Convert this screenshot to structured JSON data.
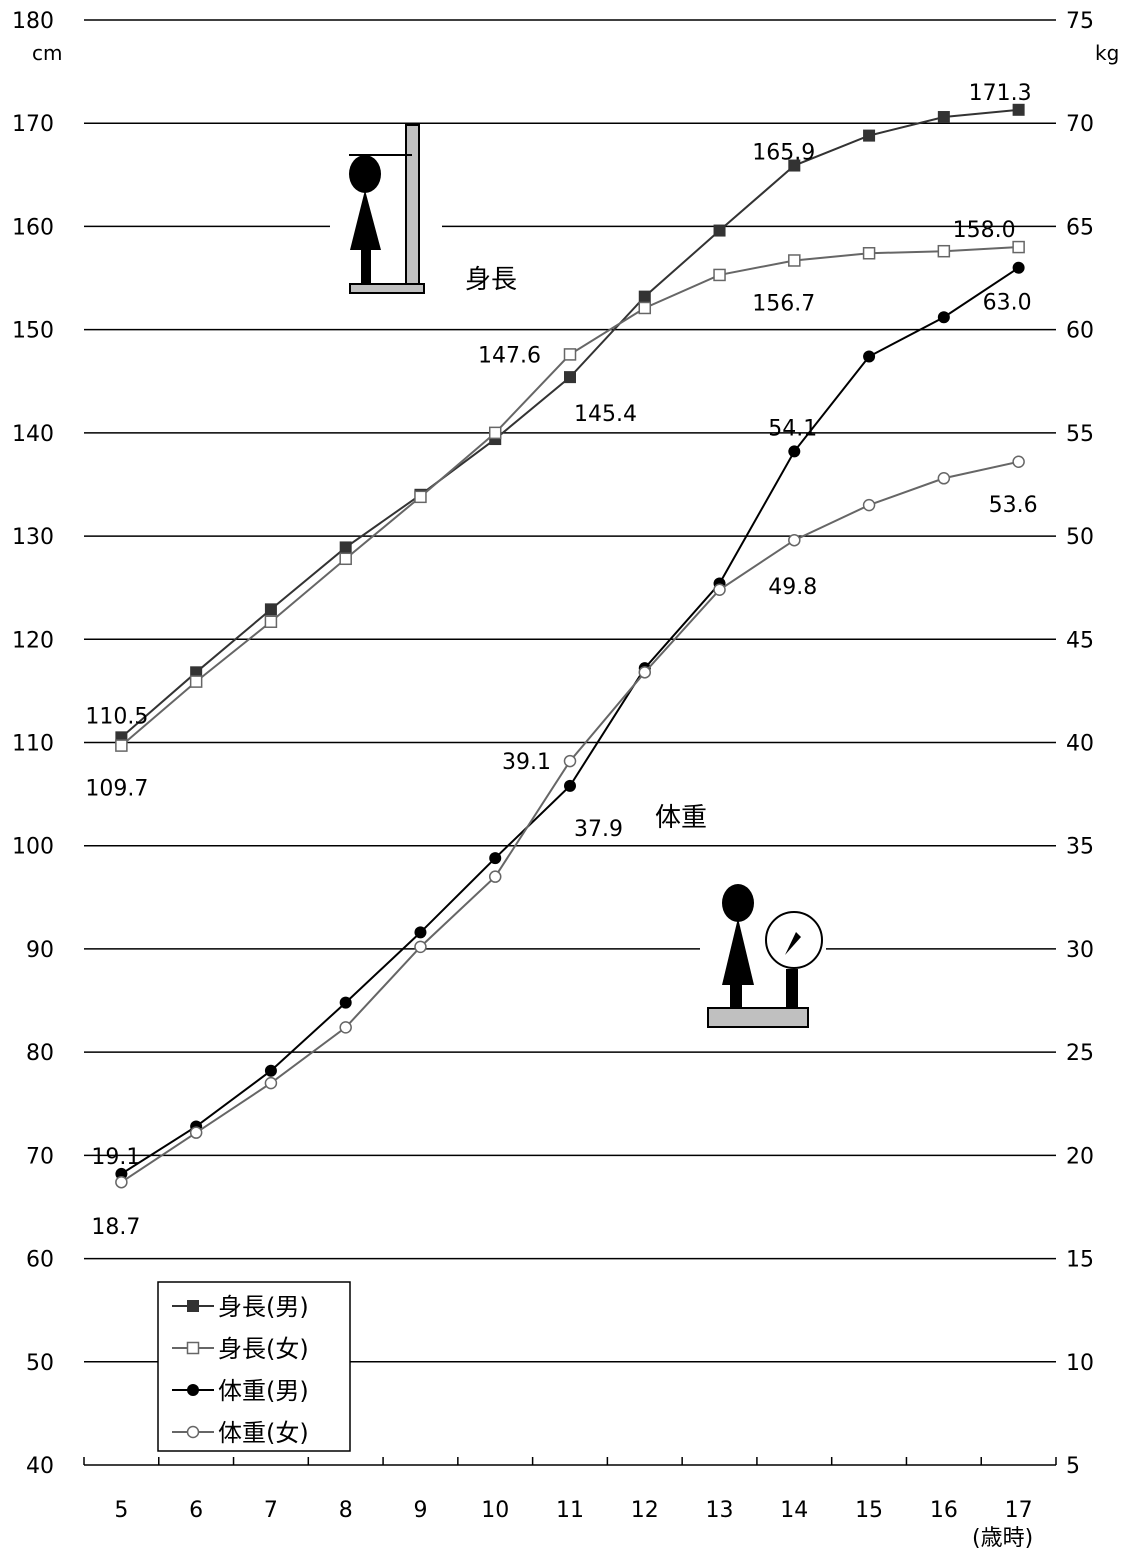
{
  "chart_data": {
    "type": "line",
    "title": "",
    "xlabel": "(歳時)",
    "categories": [
      "5",
      "6",
      "7",
      "8",
      "9",
      "10",
      "11",
      "12",
      "13",
      "14",
      "15",
      "16",
      "17"
    ],
    "y_left": {
      "unit": "cm",
      "ylim": [
        40,
        180
      ],
      "ticks": [
        "40",
        "50",
        "60",
        "70",
        "80",
        "90",
        "100",
        "110",
        "120",
        "130",
        "140",
        "150",
        "160",
        "170",
        "180"
      ]
    },
    "y_right": {
      "unit": "kg",
      "ylim": [
        5,
        75
      ],
      "ticks": [
        "5",
        "10",
        "15",
        "20",
        "25",
        "30",
        "35",
        "40",
        "45",
        "50",
        "55",
        "60",
        "65",
        "70",
        "75"
      ]
    },
    "grid": true,
    "legend_position": "bottom-left",
    "series": [
      {
        "name": "身長(男)",
        "axis": "left",
        "marker": "filled-square",
        "color": "#333333",
        "values": [
          110.5,
          116.8,
          122.9,
          128.9,
          134.0,
          139.4,
          145.4,
          153.2,
          159.6,
          165.9,
          168.8,
          170.6,
          171.3
        ]
      },
      {
        "name": "身長(女)",
        "axis": "left",
        "marker": "open-square",
        "color": "#666666",
        "values": [
          109.7,
          115.9,
          121.7,
          127.8,
          133.8,
          140.0,
          147.6,
          152.1,
          155.3,
          156.7,
          157.4,
          157.6,
          158.0
        ]
      },
      {
        "name": "体重(男)",
        "axis": "right",
        "marker": "filled-circle",
        "color": "#000000",
        "values": [
          19.1,
          21.4,
          24.1,
          27.4,
          30.8,
          34.4,
          37.9,
          43.6,
          47.7,
          54.1,
          58.7,
          60.6,
          63.0
        ]
      },
      {
        "name": "体重(女)",
        "axis": "right",
        "marker": "open-circle",
        "color": "#666666",
        "values": [
          18.7,
          21.1,
          23.5,
          26.2,
          30.1,
          33.5,
          39.1,
          43.4,
          47.4,
          49.8,
          51.5,
          52.8,
          53.6
        ]
      }
    ],
    "annotations": [
      {
        "text": "110.5",
        "series": 0,
        "index": 0
      },
      {
        "text": "109.7",
        "series": 1,
        "index": 0
      },
      {
        "text": "147.6",
        "series": 1,
        "index": 6
      },
      {
        "text": "145.4",
        "series": 0,
        "index": 6
      },
      {
        "text": "165.9",
        "series": 0,
        "index": 9
      },
      {
        "text": "156.7",
        "series": 1,
        "index": 9
      },
      {
        "text": "171.3",
        "series": 0,
        "index": 12
      },
      {
        "text": "158.0",
        "series": 1,
        "index": 12
      },
      {
        "text": "19.1",
        "series": 2,
        "index": 0
      },
      {
        "text": "18.7",
        "series": 3,
        "index": 0
      },
      {
        "text": "39.1",
        "series": 3,
        "index": 6
      },
      {
        "text": "37.9",
        "series": 2,
        "index": 6
      },
      {
        "text": "54.1",
        "series": 2,
        "index": 9
      },
      {
        "text": "49.8",
        "series": 3,
        "index": 9
      },
      {
        "text": "63.0",
        "series": 2,
        "index": 12
      },
      {
        "text": "53.6",
        "series": 3,
        "index": 12
      }
    ],
    "group_labels": {
      "height": "身長",
      "weight": "体重"
    }
  },
  "icons": [
    "height-measure-icon",
    "weight-scale-icon"
  ]
}
